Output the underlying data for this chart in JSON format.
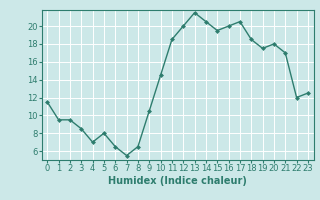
{
  "x": [
    0,
    1,
    2,
    3,
    4,
    5,
    6,
    7,
    8,
    9,
    10,
    11,
    12,
    13,
    14,
    15,
    16,
    17,
    18,
    19,
    20,
    21,
    22,
    23
  ],
  "y": [
    11.5,
    9.5,
    9.5,
    8.5,
    7.0,
    8.0,
    6.5,
    5.5,
    6.5,
    10.5,
    14.5,
    18.5,
    20.0,
    21.5,
    20.5,
    19.5,
    20.0,
    20.5,
    18.5,
    17.5,
    18.0,
    17.0,
    12.0,
    12.5
  ],
  "line_color": "#2e7d6e",
  "marker": "D",
  "marker_size": 2.0,
  "bg_color": "#cce8e8",
  "grid_color": "#ffffff",
  "xlabel": "Humidex (Indice chaleur)",
  "xlim": [
    -0.5,
    23.5
  ],
  "ylim": [
    5.0,
    21.8
  ],
  "yticks": [
    6,
    8,
    10,
    12,
    14,
    16,
    18,
    20
  ],
  "xticks": [
    0,
    1,
    2,
    3,
    4,
    5,
    6,
    7,
    8,
    9,
    10,
    11,
    12,
    13,
    14,
    15,
    16,
    17,
    18,
    19,
    20,
    21,
    22,
    23
  ],
  "tick_color": "#2e7d6e",
  "axis_color": "#2e7d6e",
  "label_fontsize": 6,
  "xlabel_fontsize": 7,
  "linewidth": 1.0
}
